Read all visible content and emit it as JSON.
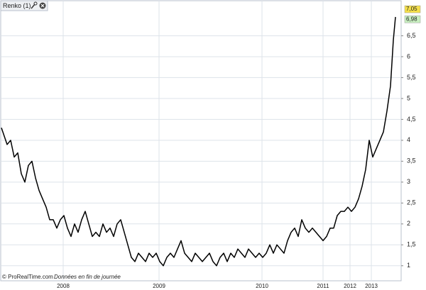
{
  "chart_data": {
    "type": "line",
    "title": "Renko (1)",
    "x": [
      0,
      8,
      13,
      18,
      23,
      28,
      33,
      38,
      43,
      48,
      53,
      58,
      63,
      68,
      73,
      78,
      83,
      88,
      93,
      98,
      103,
      108,
      113,
      118,
      123,
      128,
      133,
      138,
      143,
      148,
      153,
      158,
      163,
      168,
      173,
      178,
      183,
      188,
      193,
      198,
      203,
      208,
      213,
      218,
      223,
      228,
      233,
      238,
      243,
      248,
      253,
      258,
      263,
      268,
      273,
      278,
      283,
      288,
      293,
      298,
      303,
      308,
      313,
      318,
      323,
      328,
      333,
      338,
      343,
      348,
      353,
      358,
      363,
      368,
      373,
      378,
      383,
      388,
      393,
      398,
      403,
      408,
      413,
      418,
      423,
      428,
      433,
      438,
      443,
      448,
      453,
      458,
      463,
      468,
      473,
      478,
      483,
      488,
      493,
      498,
      503,
      508,
      513,
      518,
      523,
      528,
      533,
      538,
      543,
      548,
      552,
      555
    ],
    "values": [
      4.3,
      3.9,
      4.0,
      3.6,
      3.7,
      3.2,
      3.0,
      3.4,
      3.5,
      3.1,
      2.8,
      2.6,
      2.4,
      2.1,
      2.1,
      1.9,
      2.1,
      2.2,
      1.9,
      1.7,
      2.0,
      1.8,
      2.1,
      2.3,
      2.0,
      1.7,
      1.8,
      1.7,
      2.0,
      1.8,
      1.9,
      1.7,
      2.0,
      2.1,
      1.8,
      1.5,
      1.2,
      1.1,
      1.3,
      1.2,
      1.1,
      1.3,
      1.2,
      1.3,
      1.1,
      1.0,
      1.2,
      1.3,
      1.2,
      1.4,
      1.6,
      1.3,
      1.2,
      1.1,
      1.3,
      1.2,
      1.1,
      1.2,
      1.3,
      1.1,
      1.0,
      1.2,
      1.3,
      1.1,
      1.3,
      1.2,
      1.4,
      1.3,
      1.2,
      1.4,
      1.3,
      1.2,
      1.3,
      1.2,
      1.3,
      1.5,
      1.3,
      1.5,
      1.4,
      1.3,
      1.6,
      1.8,
      1.9,
      1.7,
      2.1,
      1.9,
      1.8,
      1.9,
      1.8,
      1.7,
      1.6,
      1.7,
      1.9,
      1.9,
      2.2,
      2.3,
      2.3,
      2.4,
      2.3,
      2.4,
      2.6,
      2.9,
      3.3,
      4.0,
      3.6,
      3.8,
      4.0,
      4.2,
      4.7,
      5.3,
      6.4,
      6.95
    ],
    "color": "#000000",
    "xlim": [
      0,
      563
    ],
    "xticks": [
      {
        "value": 87,
        "label": "2008"
      },
      {
        "value": 222,
        "label": "2009"
      },
      {
        "value": 367,
        "label": "2010"
      },
      {
        "value": 453,
        "label": "2011"
      },
      {
        "value": 491,
        "label": "2012"
      },
      {
        "value": 521,
        "label": "2013"
      }
    ],
    "ylim": [
      0.64,
      7.22
    ],
    "yticks": [
      1,
      {
        "value": 1.5,
        "label": "1,5"
      },
      2,
      {
        "value": 2.5,
        "label": "2,5"
      },
      3,
      {
        "value": 3.5,
        "label": "3,5"
      },
      4,
      {
        "value": 4.5,
        "label": "4,5"
      },
      5,
      {
        "value": 5.5,
        "label": "5,5"
      },
      6,
      {
        "value": 6.5,
        "label": "6,5"
      }
    ],
    "grid": true,
    "price_labels": [
      {
        "value": 7.05,
        "label": "7,05"
      },
      {
        "value": 6.98,
        "label": "6,98"
      }
    ],
    "source": "© ProRealTime.com",
    "note": "Données en fin de journée"
  }
}
